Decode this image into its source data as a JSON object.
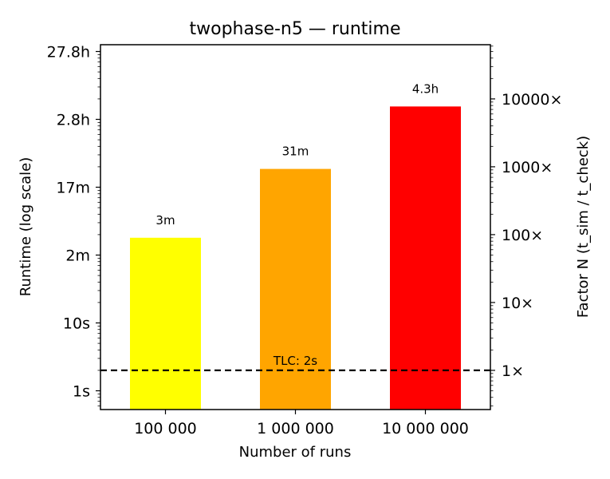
{
  "chart_data": {
    "type": "bar",
    "title": "twophase-n5 — runtime",
    "xlabel": "Number of runs",
    "ylabel": "Runtime (log scale)",
    "ylabel_right": "Factor N (t_sim / t_check)",
    "yscale": "log",
    "ylim_seconds": [
      0.7,
      150000
    ],
    "categories": [
      "100 000",
      "1 000 000",
      "10 000 000"
    ],
    "values_seconds": [
      180,
      1860,
      15480
    ],
    "data_labels": [
      "3m",
      "31m",
      "4.3h"
    ],
    "bar_colors": [
      "#ffff00",
      "#ffa500",
      "#ff0000"
    ],
    "left_ticks": [
      {
        "value": 1,
        "label": "1s"
      },
      {
        "value": 10,
        "label": "10s"
      },
      {
        "value": 100,
        "label": "2m"
      },
      {
        "value": 1000,
        "label": "17m"
      },
      {
        "value": 10000,
        "label": "2.8h"
      },
      {
        "value": 100000,
        "label": "27.8h"
      }
    ],
    "right_axis_reference_seconds": 2,
    "right_ticks": [
      {
        "factor": 1,
        "label": "1×"
      },
      {
        "factor": 10,
        "label": "10×"
      },
      {
        "factor": 100,
        "label": "100×"
      },
      {
        "factor": 1000,
        "label": "1000×"
      },
      {
        "factor": 10000,
        "label": "10000×"
      }
    ],
    "reference_line": {
      "value_seconds": 2,
      "label": "TLC: 2s",
      "style": "dashed",
      "color": "#000000"
    },
    "grid": false,
    "legend": "none"
  }
}
